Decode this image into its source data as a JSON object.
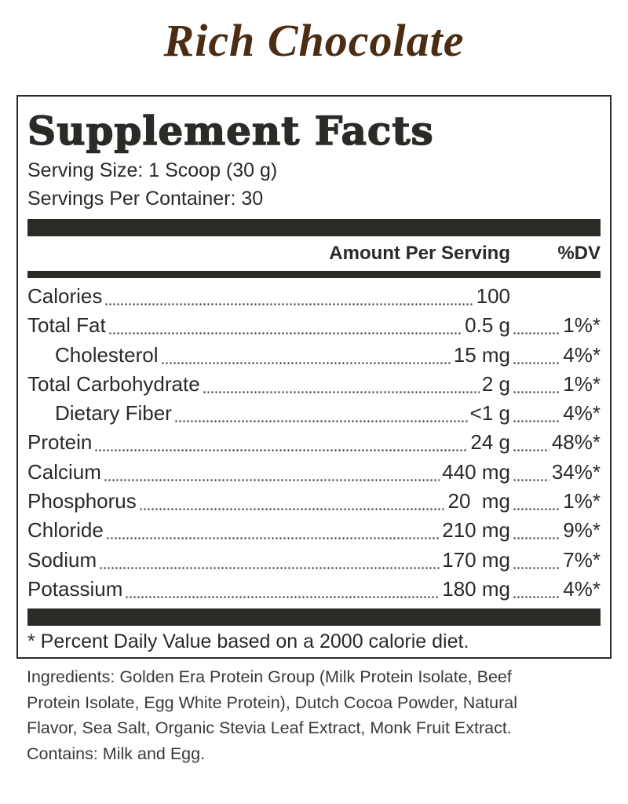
{
  "title": "Rich Chocolate",
  "panel": {
    "heading": "Supplement Facts",
    "serving_size": "Serving Size: 1 Scoop (30 g)",
    "servings_per_container": "Servings Per Container: 30",
    "column_amount": "Amount Per Serving",
    "column_dv": "%DV",
    "rows": [
      {
        "name": "Calories",
        "amount": "100"
      },
      {
        "name": "Total Fat",
        "amount": "0.5 g",
        "dv": "1%*"
      },
      {
        "name": "Cholesterol",
        "amount": "15 mg",
        "dv": "4%*",
        "indent": true
      },
      {
        "name": "Total Carbohydrate",
        "amount": "2 g",
        "dv": "1%*"
      },
      {
        "name": "Dietary Fiber",
        "amount": "<1 g",
        "dv": "4%*",
        "indent": true
      },
      {
        "name": "Protein",
        "amount": "24 g",
        "dv": "48%*"
      },
      {
        "name": "Calcium",
        "amount": "440 mg",
        "dv": "34%*"
      },
      {
        "name": "Phosphorus",
        "amount": "20  mg",
        "dv": "1%*"
      },
      {
        "name": "Chloride",
        "amount": "210 mg",
        "dv": "9%*"
      },
      {
        "name": "Sodium",
        "amount": "170 mg",
        "dv": "7%*"
      },
      {
        "name": "Potassium",
        "amount": "180 mg",
        "dv": "4%*"
      }
    ],
    "footnote": "* Percent Daily Value based on a 2000 calorie diet."
  },
  "ingredients": [
    "Ingredients: Golden Era Protein Group (Milk Protein Isolate, Beef",
    "Protein Isolate, Egg White Protein), Dutch Cocoa Powder, Natural",
    "Flavor, Sea Salt, Organic Stevia Leaf Extract, Monk Fruit Extract.",
    "Contains: Milk and Egg."
  ]
}
